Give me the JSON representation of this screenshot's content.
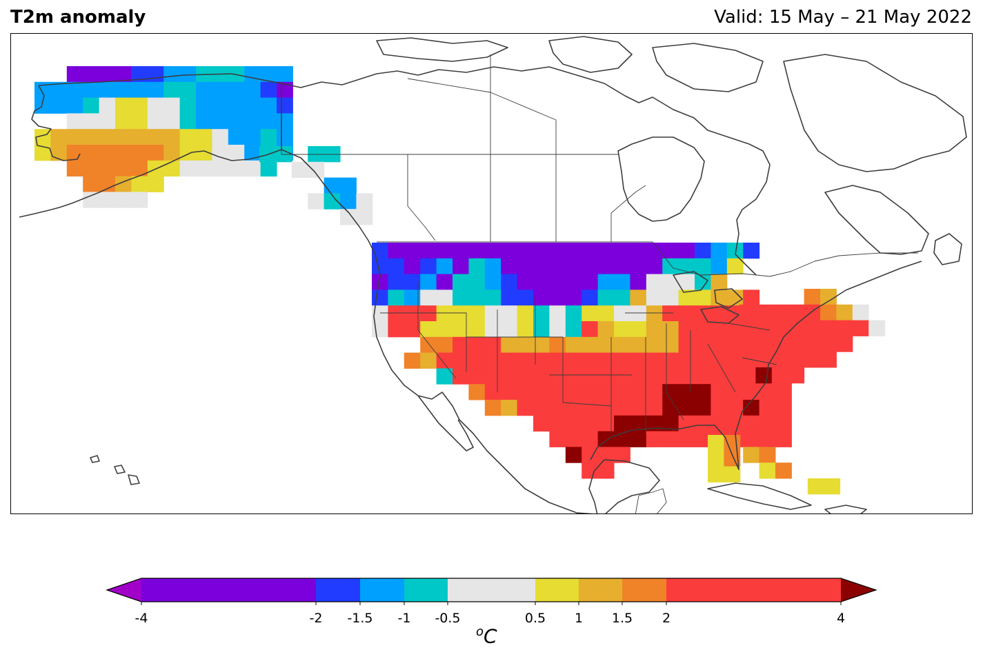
{
  "header": {
    "title": "T2m anomaly",
    "valid": "Valid: 15 May – 21 May 2022"
  },
  "colorbar": {
    "unit": "C",
    "unit_prefix": "o",
    "ticks": [
      "-4",
      "-2",
      "-1.5",
      "-1",
      "-0.5",
      "0.5",
      "1",
      "1.5",
      "2",
      "4"
    ],
    "bounds": [
      -4,
      -2,
      -1.5,
      -1,
      -0.5,
      0.5,
      1,
      1.5,
      2,
      4
    ],
    "colors": [
      "#7b00dc",
      "#223cff",
      "#00a0ff",
      "#00c8c8",
      "#e6e6e6",
      "#e6dc32",
      "#e6af2d",
      "#f08228",
      "#fa3c3c"
    ],
    "under_color": "#a000c8",
    "over_color": "#8b0000"
  },
  "map": {
    "coastline_color": "#3c3c3c",
    "border_color": "#3c3c3c"
  }
}
